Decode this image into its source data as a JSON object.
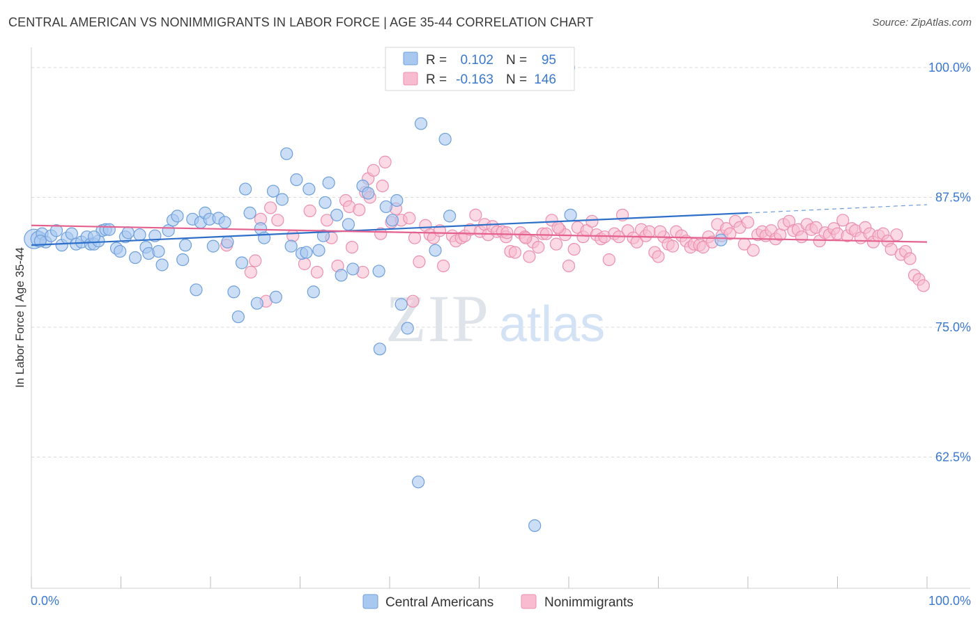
{
  "title": "CENTRAL AMERICAN VS NONIMMIGRANTS IN LABOR FORCE | AGE 35-44 CORRELATION CHART",
  "source": "Source: ZipAtlas.com",
  "watermark": {
    "zip": "ZIP",
    "atlas": "atlas"
  },
  "legend_top": [
    {
      "r_label": "R =",
      "r_value": "0.102",
      "n_label": "N =",
      "n_value": "95"
    },
    {
      "r_label": "R =",
      "r_value": "-0.163",
      "n_label": "N =",
      "n_value": "146"
    }
  ],
  "legend_bottom": [
    "Central Americans",
    "Nonimmigrants"
  ],
  "colors": {
    "blue_fill": "#a9c8f0",
    "blue_stroke": "#6d9fdb",
    "blue_line": "#2e6fc9",
    "pink_fill": "#f7bcd0",
    "pink_stroke": "#ec8fae",
    "pink_line": "#e4608f",
    "value_text": "#3a78d0",
    "grid": "#d8d8d8"
  },
  "chart_data": {
    "type": "scatter",
    "title": "CENTRAL AMERICAN VS NONIMMIGRANTS IN LABOR FORCE | AGE 35-44 CORRELATION CHART",
    "ylabel": "In Labor Force | Age 35-44",
    "xlabel": "",
    "xlim": [
      0,
      100
    ],
    "ylim": [
      51.5,
      101.5
    ],
    "x_tick_labels": [
      "0.0%",
      "100.0%"
    ],
    "y_ticks": [
      100,
      87.5,
      75,
      62.5
    ],
    "y_tick_labels": [
      "100.0%",
      "87.5%",
      "75.0%",
      "62.5%"
    ],
    "grid": true,
    "legend_position": "top-center",
    "series": [
      {
        "name": "Central Americans",
        "r": 0.102,
        "n": 95,
        "trend": {
          "x": [
            0,
            80
          ],
          "y": [
            82.9,
            86.0
          ],
          "dashed_to": [
            100,
            86.8
          ]
        },
        "points": [
          [
            0.3,
            83.5
          ],
          [
            0.8,
            83.5
          ],
          [
            1.2,
            84.0
          ],
          [
            1.6,
            83.2
          ],
          [
            2.2,
            83.8
          ],
          [
            2.8,
            84.3
          ],
          [
            3.4,
            82.9
          ],
          [
            4.0,
            83.6
          ],
          [
            4.5,
            84.0
          ],
          [
            5.0,
            83.0
          ],
          [
            5.6,
            83.2
          ],
          [
            6.2,
            83.7
          ],
          [
            6.6,
            83.0
          ],
          [
            7.0,
            83.0
          ],
          [
            7.5,
            83.3
          ],
          [
            7.9,
            84.3
          ],
          [
            8.3,
            84.4
          ],
          [
            8.7,
            84.4
          ],
          [
            9.5,
            82.6
          ],
          [
            9.9,
            82.3
          ],
          [
            10.5,
            83.7
          ],
          [
            10.8,
            84.1
          ],
          [
            11.6,
            81.7
          ],
          [
            12.1,
            83.9
          ],
          [
            12.8,
            82.7
          ],
          [
            13.1,
            82.1
          ],
          [
            13.8,
            83.8
          ],
          [
            14.2,
            82.3
          ],
          [
            14.6,
            81.0
          ],
          [
            15.3,
            84.3
          ],
          [
            15.8,
            85.3
          ],
          [
            16.3,
            85.7
          ],
          [
            16.9,
            81.5
          ],
          [
            17.2,
            82.9
          ],
          [
            18.0,
            85.4
          ],
          [
            18.4,
            78.6
          ],
          [
            18.9,
            85.1
          ],
          [
            19.4,
            86.0
          ],
          [
            19.9,
            85.4
          ],
          [
            20.3,
            82.8
          ],
          [
            20.9,
            85.5
          ],
          [
            21.6,
            85.1
          ],
          [
            21.9,
            83.2
          ],
          [
            22.6,
            78.4
          ],
          [
            23.1,
            76.0
          ],
          [
            23.5,
            81.2
          ],
          [
            23.9,
            88.3
          ],
          [
            24.4,
            86.0
          ],
          [
            25.2,
            77.3
          ],
          [
            25.6,
            84.5
          ],
          [
            26.0,
            83.6
          ],
          [
            27.0,
            88.1
          ],
          [
            27.3,
            77.9
          ],
          [
            28.0,
            87.3
          ],
          [
            28.5,
            91.7
          ],
          [
            29.0,
            82.8
          ],
          [
            29.6,
            89.2
          ],
          [
            30.2,
            82.1
          ],
          [
            30.7,
            82.2
          ],
          [
            31.0,
            88.3
          ],
          [
            31.5,
            78.4
          ],
          [
            32.1,
            82.4
          ],
          [
            32.6,
            83.8
          ],
          [
            32.8,
            87.0
          ],
          [
            33.2,
            88.9
          ],
          [
            34.1,
            85.8
          ],
          [
            34.6,
            80.0
          ],
          [
            35.4,
            84.9
          ],
          [
            35.9,
            80.6
          ],
          [
            37.0,
            88.6
          ],
          [
            37.6,
            87.9
          ],
          [
            38.8,
            80.4
          ],
          [
            38.9,
            72.9
          ],
          [
            39.6,
            86.6
          ],
          [
            40.3,
            85.3
          ],
          [
            40.8,
            87.2
          ],
          [
            41.3,
            77.2
          ],
          [
            42.0,
            74.9
          ],
          [
            43.5,
            94.6
          ],
          [
            43.2,
            60.1
          ],
          [
            45.1,
            82.4
          ],
          [
            46.2,
            93.1
          ],
          [
            46.7,
            85.7
          ],
          [
            52.5,
            100.3
          ],
          [
            56.2,
            55.9
          ],
          [
            60.0,
            100.0
          ],
          [
            60.2,
            85.8
          ],
          [
            77.0,
            83.4
          ],
          [
            1.0,
            83.3
          ],
          [
            7.0,
            83.7
          ]
        ]
      },
      {
        "name": "Nonimmigrants",
        "r": -0.163,
        "n": 146,
        "trend": {
          "x": [
            0,
            100
          ],
          "y": [
            84.8,
            83.2
          ]
        },
        "points": [
          [
            21.8,
            82.9
          ],
          [
            24.5,
            80.3
          ],
          [
            25.0,
            81.4
          ],
          [
            25.6,
            85.4
          ],
          [
            26.2,
            77.5
          ],
          [
            26.7,
            86.5
          ],
          [
            27.5,
            85.3
          ],
          [
            29.2,
            83.8
          ],
          [
            30.5,
            81.1
          ],
          [
            31.1,
            86.2
          ],
          [
            31.9,
            80.3
          ],
          [
            33.0,
            85.3
          ],
          [
            33.5,
            83.6
          ],
          [
            34.2,
            80.9
          ],
          [
            35.1,
            87.2
          ],
          [
            35.5,
            86.6
          ],
          [
            35.8,
            82.7
          ],
          [
            36.6,
            86.3
          ],
          [
            37.0,
            80.3
          ],
          [
            37.3,
            88.0
          ],
          [
            37.8,
            87.5
          ],
          [
            37.6,
            89.3
          ],
          [
            38.2,
            90.1
          ],
          [
            39.2,
            88.6
          ],
          [
            39.0,
            84.0
          ],
          [
            39.5,
            90.9
          ],
          [
            40.2,
            85.1
          ],
          [
            40.7,
            86.4
          ],
          [
            41.3,
            85.3
          ],
          [
            42.2,
            85.5
          ],
          [
            42.6,
            77.5
          ],
          [
            42.8,
            83.6
          ],
          [
            43.3,
            81.3
          ],
          [
            44.0,
            84.8
          ],
          [
            44.5,
            83.9
          ],
          [
            44.9,
            83.6
          ],
          [
            45.6,
            84.3
          ],
          [
            46.0,
            80.9
          ],
          [
            47.0,
            83.8
          ],
          [
            47.4,
            83.3
          ],
          [
            48.0,
            83.6
          ],
          [
            48.4,
            83.8
          ],
          [
            49.0,
            84.4
          ],
          [
            49.6,
            85.8
          ],
          [
            50.1,
            84.2
          ],
          [
            50.6,
            84.9
          ],
          [
            51.0,
            83.9
          ],
          [
            51.5,
            84.7
          ],
          [
            52.0,
            84.2
          ],
          [
            52.6,
            84.2
          ],
          [
            53.0,
            83.7
          ],
          [
            53.5,
            82.3
          ],
          [
            54.0,
            82.2
          ],
          [
            54.6,
            84.1
          ],
          [
            55.1,
            83.7
          ],
          [
            55.6,
            81.8
          ],
          [
            56.0,
            83.2
          ],
          [
            56.6,
            82.7
          ],
          [
            57.1,
            84.0
          ],
          [
            57.5,
            84.0
          ],
          [
            58.1,
            85.3
          ],
          [
            58.6,
            83.0
          ],
          [
            59.0,
            84.4
          ],
          [
            59.6,
            83.9
          ],
          [
            60.0,
            80.9
          ],
          [
            60.6,
            82.5
          ],
          [
            61.0,
            84.6
          ],
          [
            61.6,
            83.7
          ],
          [
            62.0,
            84.3
          ],
          [
            62.6,
            85.2
          ],
          [
            63.1,
            83.9
          ],
          [
            63.6,
            83.5
          ],
          [
            64.0,
            83.7
          ],
          [
            64.5,
            81.5
          ],
          [
            65.1,
            84.0
          ],
          [
            65.6,
            83.7
          ],
          [
            66.0,
            85.8
          ],
          [
            66.6,
            84.3
          ],
          [
            67.2,
            83.6
          ],
          [
            67.6,
            83.2
          ],
          [
            68.1,
            84.4
          ],
          [
            68.6,
            83.8
          ],
          [
            69.0,
            84.2
          ],
          [
            69.6,
            82.2
          ],
          [
            70.0,
            81.8
          ],
          [
            70.6,
            83.7
          ],
          [
            71.1,
            83.0
          ],
          [
            71.6,
            82.8
          ],
          [
            72.0,
            84.2
          ],
          [
            72.6,
            83.8
          ],
          [
            73.1,
            83.3
          ],
          [
            73.6,
            82.7
          ],
          [
            74.0,
            83.0
          ],
          [
            74.6,
            82.9
          ],
          [
            75.0,
            82.7
          ],
          [
            75.6,
            83.7
          ],
          [
            76.0,
            83.2
          ],
          [
            76.6,
            84.9
          ],
          [
            77.1,
            83.8
          ],
          [
            77.6,
            84.5
          ],
          [
            78.0,
            84.0
          ],
          [
            78.6,
            85.2
          ],
          [
            79.1,
            84.6
          ],
          [
            79.6,
            83.0
          ],
          [
            80.0,
            85.1
          ],
          [
            80.6,
            82.4
          ],
          [
            81.1,
            83.9
          ],
          [
            81.6,
            84.2
          ],
          [
            82.0,
            83.8
          ],
          [
            82.6,
            84.3
          ],
          [
            83.1,
            83.5
          ],
          [
            83.6,
            83.9
          ],
          [
            84.0,
            84.9
          ],
          [
            84.6,
            85.2
          ],
          [
            85.1,
            84.3
          ],
          [
            85.6,
            84.4
          ],
          [
            86.0,
            83.7
          ],
          [
            86.6,
            84.9
          ],
          [
            87.1,
            84.4
          ],
          [
            87.6,
            84.6
          ],
          [
            88.0,
            83.3
          ],
          [
            88.6,
            84.1
          ],
          [
            89.1,
            83.9
          ],
          [
            89.6,
            84.5
          ],
          [
            90.0,
            84.0
          ],
          [
            90.6,
            85.3
          ],
          [
            91.1,
            83.8
          ],
          [
            91.6,
            84.5
          ],
          [
            92.0,
            84.3
          ],
          [
            92.6,
            83.6
          ],
          [
            93.1,
            84.6
          ],
          [
            93.6,
            84.0
          ],
          [
            94.0,
            83.2
          ],
          [
            94.6,
            83.8
          ],
          [
            95.1,
            84.0
          ],
          [
            95.6,
            83.3
          ],
          [
            96.0,
            82.5
          ],
          [
            96.6,
            83.9
          ],
          [
            97.1,
            82.0
          ],
          [
            97.6,
            82.3
          ],
          [
            98.1,
            81.6
          ],
          [
            98.6,
            80.0
          ],
          [
            99.1,
            79.6
          ],
          [
            99.6,
            79.0
          ],
          [
            55.2,
            83.6
          ],
          [
            53.1,
            84.1
          ],
          [
            58.8,
            84.6
          ],
          [
            70.2,
            84.2
          ]
        ]
      }
    ]
  }
}
